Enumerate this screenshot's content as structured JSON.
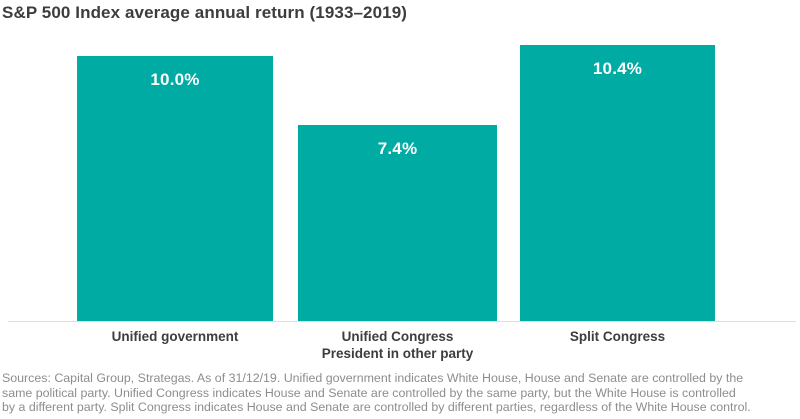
{
  "chart_data": {
    "type": "bar",
    "title": "S&P 500 Index average annual return (1933–2019)",
    "categories": [
      "Unified government",
      "Unified Congress\nPresident in other party",
      "Split Congress"
    ],
    "values": [
      10.0,
      7.4,
      10.4
    ],
    "value_labels": [
      "10.0%",
      "7.4%",
      "10.4%"
    ],
    "xlabel": "",
    "ylabel": "",
    "ylim": [
      0,
      10.4
    ],
    "grid": false,
    "legend": false,
    "bar_color": "#00aba3",
    "value_label_color": "#ffffff",
    "axis_line_color": "#dedede"
  },
  "footer": {
    "lines": [
      "Sources: Capital Group, Strategas. As of 31/12/19. Unified government indicates White House, House and Senate are controlled by the",
      "same political party. Unified Congress indicates House and Senate are controlled by the same party, but the White House is controlled",
      "by a different party. Split Congress indicates House and Senate are controlled by different parties, regardless of the White House control."
    ]
  }
}
